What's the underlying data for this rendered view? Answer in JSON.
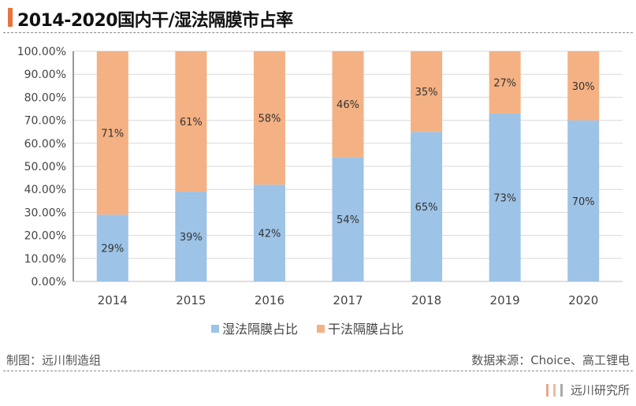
{
  "title": "2014-2020国内干/湿法隔膜市占率",
  "footer": {
    "left": "制图：远川制造组",
    "right": "数据来源：Choice、高工锂电",
    "brand": "远川研究所"
  },
  "colors": {
    "accent": "#e8733c",
    "wet": "#9dc3e6",
    "dry": "#f4b183"
  },
  "chart_data": {
    "type": "bar",
    "stacked": true,
    "categories": [
      "2014",
      "2015",
      "2016",
      "2017",
      "2018",
      "2019",
      "2020"
    ],
    "series": [
      {
        "name": "湿法隔膜占比",
        "values": [
          29,
          39,
          42,
          54,
          65,
          73,
          70
        ],
        "labels": [
          "29%",
          "39%",
          "42%",
          "54%",
          "65%",
          "73%",
          "70%"
        ]
      },
      {
        "name": "干法隔膜占比",
        "values": [
          71,
          61,
          58,
          46,
          35,
          27,
          30
        ],
        "labels": [
          "71%",
          "61%",
          "58%",
          "46%",
          "35%",
          "27%",
          "30%"
        ]
      }
    ],
    "yticks": [
      "0.00%",
      "10.00%",
      "20.00%",
      "30.00%",
      "40.00%",
      "50.00%",
      "60.00%",
      "70.00%",
      "80.00%",
      "90.00%",
      "100.00%"
    ],
    "ylim": [
      0,
      100
    ],
    "grid": true,
    "legend": "bottom"
  }
}
